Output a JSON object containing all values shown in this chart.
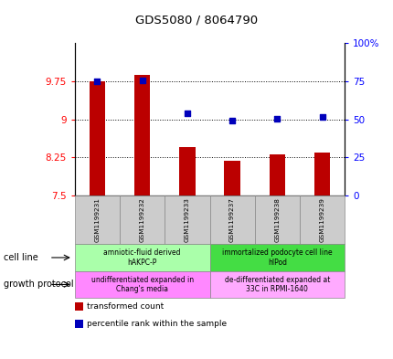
{
  "title": "GDS5080 / 8064790",
  "samples": [
    "GSM1199231",
    "GSM1199232",
    "GSM1199233",
    "GSM1199237",
    "GSM1199238",
    "GSM1199239"
  ],
  "bar_values": [
    9.75,
    9.87,
    8.45,
    8.18,
    8.32,
    8.35
  ],
  "bar_base": 7.5,
  "dot_values": [
    9.75,
    9.77,
    9.12,
    8.97,
    9.02,
    9.04
  ],
  "ylim": [
    7.5,
    10.5
  ],
  "y_ticks": [
    7.5,
    8.25,
    9.0,
    9.75
  ],
  "y_labels": [
    "7.5",
    "8.25",
    "9",
    "9.75"
  ],
  "y2_ticks": [
    0,
    25,
    50,
    75,
    100
  ],
  "y2_labels": [
    "0",
    "25",
    "50",
    "75",
    "100%"
  ],
  "bar_color": "#bb0000",
  "dot_color": "#0000bb",
  "cell_line_groups": [
    {
      "label": "amniotic-fluid derived\nhAKPC-P",
      "color": "#aaffaa",
      "start": 0,
      "end": 3
    },
    {
      "label": "immortalized podocyte cell line\nhIPod",
      "color": "#44dd44",
      "start": 3,
      "end": 6
    }
  ],
  "growth_protocol_groups": [
    {
      "label": "undifferentiated expanded in\nChang's media",
      "color": "#ff88ff",
      "start": 0,
      "end": 3
    },
    {
      "label": "de-differentiated expanded at\n33C in RPMI-1640",
      "color": "#ffaaff",
      "start": 3,
      "end": 6
    }
  ],
  "cell_line_label": "cell line",
  "growth_protocol_label": "growth protocol",
  "legend_items": [
    {
      "label": "transformed count",
      "color": "#bb0000"
    },
    {
      "label": "percentile rank within the sample",
      "color": "#0000bb"
    }
  ],
  "fig_width": 4.31,
  "fig_height": 3.93,
  "dpi": 100
}
